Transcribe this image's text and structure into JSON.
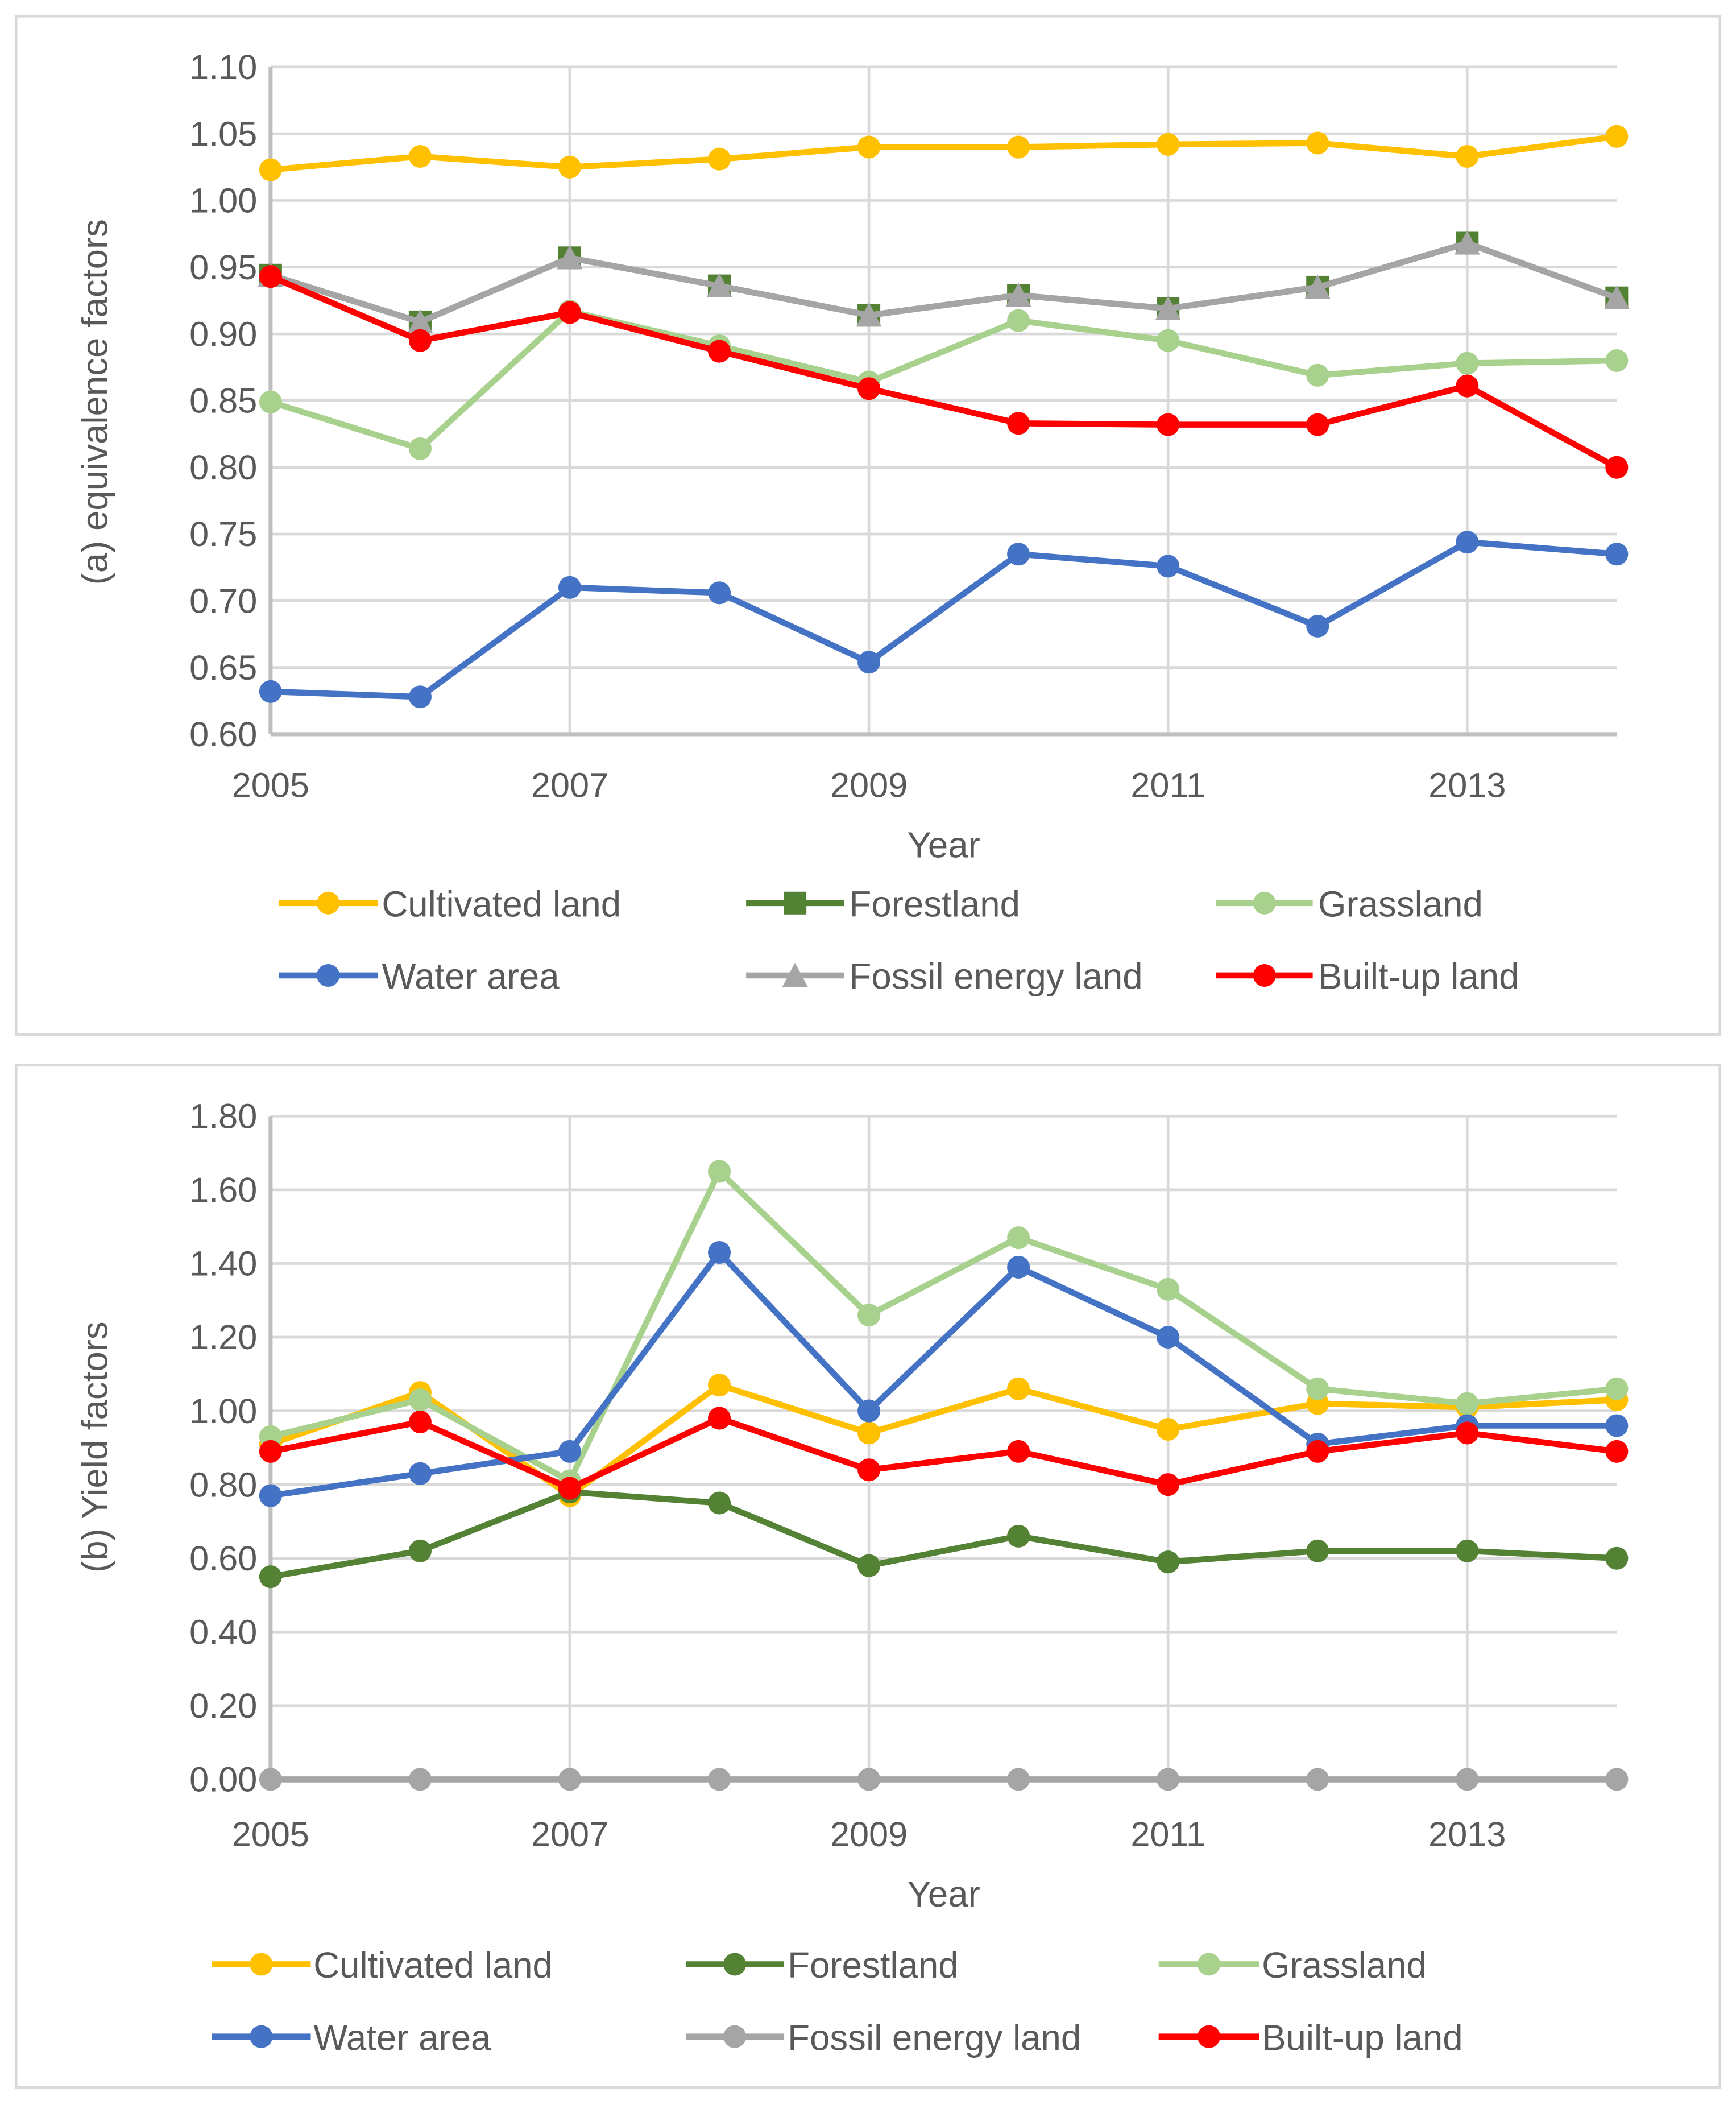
{
  "chart_data": [
    {
      "type": "line",
      "title": "",
      "xlabel": "Year",
      "ylabel": "(a) equivalence factors",
      "x": [
        2005,
        2006,
        2007,
        2008,
        2009,
        2010,
        2011,
        2012,
        2013,
        2014
      ],
      "xticks": [
        "2005",
        "2007",
        "2009",
        "2011",
        "2013"
      ],
      "yticks": [
        "0.60",
        "0.65",
        "0.70",
        "0.75",
        "0.80",
        "0.85",
        "0.90",
        "0.95",
        "1.00",
        "1.05",
        "1.10"
      ],
      "ylim": [
        0.6,
        1.1
      ],
      "grid": true,
      "legend_position": "bottom",
      "series": [
        {
          "name": "Cultivated land",
          "color": "#FFC000",
          "marker": "circle",
          "values": [
            1.023,
            1.033,
            1.025,
            1.031,
            1.04,
            1.04,
            1.042,
            1.043,
            1.033,
            1.048
          ]
        },
        {
          "name": "Forestland",
          "color": "#548235",
          "marker": "square",
          "values": [
            0.944,
            0.909,
            0.957,
            0.936,
            0.914,
            0.929,
            0.919,
            0.935,
            0.968,
            0.927
          ]
        },
        {
          "name": "Grassland",
          "color": "#A9D18E",
          "marker": "circle",
          "values": [
            0.849,
            0.814,
            0.917,
            0.891,
            0.864,
            0.91,
            0.895,
            0.869,
            0.878,
            0.88
          ]
        },
        {
          "name": "Water area",
          "color": "#4472C4",
          "marker": "circle",
          "values": [
            0.632,
            0.628,
            0.71,
            0.706,
            0.654,
            0.735,
            0.726,
            0.681,
            0.744,
            0.735
          ]
        },
        {
          "name": "Fossil energy land",
          "color": "#A5A5A5",
          "marker": "triangle",
          "values": [
            0.944,
            0.909,
            0.957,
            0.936,
            0.914,
            0.929,
            0.919,
            0.935,
            0.968,
            0.927
          ]
        },
        {
          "name": "Built-up land",
          "color": "#FF0000",
          "marker": "circle",
          "values": [
            0.943,
            0.895,
            0.916,
            0.887,
            0.859,
            0.833,
            0.832,
            0.832,
            0.861,
            0.8
          ]
        }
      ]
    },
    {
      "type": "line",
      "title": "",
      "xlabel": "Year",
      "ylabel": "(b) Yield factors",
      "x": [
        2005,
        2006,
        2007,
        2008,
        2009,
        2010,
        2011,
        2012,
        2013,
        2014
      ],
      "xticks": [
        "2005",
        "2007",
        "2009",
        "2011",
        "2013"
      ],
      "yticks": [
        "0.00",
        "0.20",
        "0.40",
        "0.60",
        "0.80",
        "1.00",
        "1.20",
        "1.40",
        "1.60",
        "1.80"
      ],
      "ylim": [
        0,
        1.8
      ],
      "grid": true,
      "legend_position": "bottom",
      "series": [
        {
          "name": "Cultivated land",
          "color": "#FFC000",
          "marker": "circle",
          "values": [
            0.91,
            1.05,
            0.77,
            1.07,
            0.94,
            1.06,
            0.95,
            1.02,
            1.01,
            1.03
          ]
        },
        {
          "name": "Forestland",
          "color": "#548235",
          "marker": "circle",
          "values": [
            0.55,
            0.62,
            0.78,
            0.75,
            0.58,
            0.66,
            0.59,
            0.62,
            0.62,
            0.6
          ]
        },
        {
          "name": "Grassland",
          "color": "#A9D18E",
          "marker": "circle",
          "values": [
            0.93,
            1.03,
            0.81,
            1.65,
            1.26,
            1.47,
            1.33,
            1.06,
            1.02,
            1.06
          ]
        },
        {
          "name": "Water area",
          "color": "#4472C4",
          "marker": "circle",
          "values": [
            0.77,
            0.83,
            0.89,
            1.43,
            1.0,
            1.39,
            1.2,
            0.91,
            0.96,
            0.96
          ]
        },
        {
          "name": "Fossil energy land",
          "color": "#A5A5A5",
          "marker": "circle",
          "values": [
            0,
            0,
            0,
            0,
            0,
            0,
            0,
            0,
            0,
            0
          ]
        },
        {
          "name": "Built-up land",
          "color": "#FF0000",
          "marker": "circle",
          "values": [
            0.89,
            0.97,
            0.79,
            0.98,
            0.84,
            0.89,
            0.8,
            0.89,
            0.94,
            0.89
          ]
        }
      ]
    }
  ]
}
